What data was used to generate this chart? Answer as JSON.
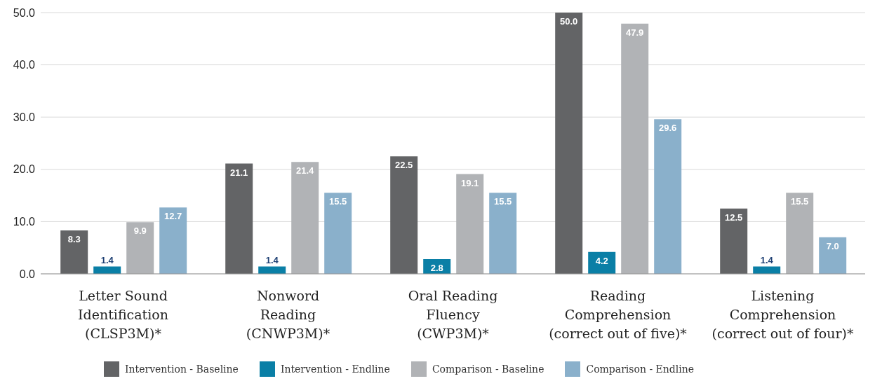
{
  "chart_data": {
    "type": "bar",
    "categories": [
      "Letter Sound\nIdentification\n(CLSP3M)*",
      "Nonword\nReading\n(CNWP3M)*",
      "Oral Reading\nFluency\n(CWP3M)*",
      "Reading\nComprehension\n(correct out of five)*",
      "Listening\nComprehension\n(correct out of four)*"
    ],
    "series": [
      {
        "name": "Intervention - Baseline",
        "color": "#636466",
        "values": [
          8.3,
          21.1,
          22.5,
          50.0,
          12.5
        ],
        "value_labels": [
          "8.3",
          "21.1",
          "22.5",
          "50.0",
          "12.5"
        ]
      },
      {
        "name": "Intervention - Endline",
        "color": "#0a7fa6",
        "values": [
          1.4,
          1.4,
          2.8,
          4.2,
          1.4
        ],
        "value_labels": [
          "1.4",
          "1.4",
          "2.8",
          "4.2",
          "1.4"
        ]
      },
      {
        "name": "Comparison - Baseline",
        "color": "#b1b3b6",
        "values": [
          9.9,
          21.4,
          19.1,
          47.9,
          15.5
        ],
        "value_labels": [
          "9.9",
          "21.4",
          "19.1",
          "47.9",
          "15.5"
        ]
      },
      {
        "name": "Comparison - Endline",
        "color": "#8ab0cb",
        "values": [
          12.7,
          15.5,
          15.5,
          29.6,
          7.0
        ],
        "value_labels": [
          "12.7",
          "15.5",
          "15.5",
          "29.6",
          "7.0"
        ]
      }
    ],
    "ylim": [
      0,
      50
    ],
    "yticks": [
      {
        "value": 0,
        "label": "0.0"
      },
      {
        "value": 10,
        "label": "10.0"
      },
      {
        "value": 20,
        "label": "20.0"
      },
      {
        "value": 30,
        "label": "30.0"
      },
      {
        "value": 40,
        "label": "40.0"
      },
      {
        "value": 50,
        "label": "50.0"
      }
    ],
    "grid": "y",
    "legend": "bottom"
  }
}
